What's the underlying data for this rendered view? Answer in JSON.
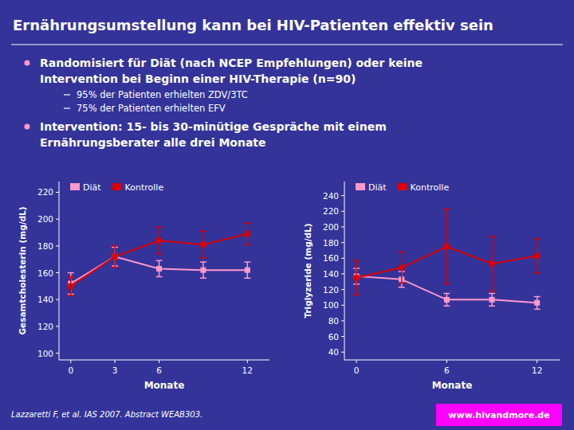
{
  "title": "Ernährungsumstellung kann bei HIV-Patienten effektiv sein",
  "bullets": [
    {
      "lines": [
        "Randomisiert für Diät (nach NCEP Empfehlungen) oder keine",
        "Intervention bei Beginn einer HIV-Therapie (n=90)"
      ],
      "sub": [
        "95% der Patienten erhielten ZDV/3TC",
        "75% der Patienten erhielten EFV"
      ]
    },
    {
      "lines": [
        "Intervention: 15- bis 30-minütige Gespräche mit einem",
        "Ernährungsberater alle drei Monate"
      ]
    }
  ],
  "footnote": "Lazzaretti F, et al. IAS 2007. Abstract WEAB303.",
  "website": "www.hivandmore.de",
  "chart_data": [
    {
      "type": "line",
      "xlabel": "Monate",
      "ylabel": "Gesamtcholesterin (mg/dL)",
      "x": [
        0,
        3,
        6,
        9,
        12
      ],
      "xlim": [
        -0.8,
        13.5
      ],
      "xticks": [
        0,
        3,
        6,
        12
      ],
      "ylim": [
        95,
        228
      ],
      "yticks": [
        100,
        120,
        140,
        160,
        180,
        200,
        220
      ],
      "grid": false,
      "legend": "upper left",
      "marker": "square",
      "series": [
        {
          "name": "Diät",
          "color": "#FF99CC",
          "values": [
            152,
            172,
            163,
            162,
            162
          ],
          "yerr": [
            8,
            7,
            6,
            6,
            6
          ]
        },
        {
          "name": "Kontrolle",
          "color": "#DD0000",
          "values": [
            150,
            172,
            184,
            181,
            189
          ],
          "yerr": [
            7,
            8,
            10,
            10,
            8
          ]
        }
      ]
    },
    {
      "type": "line",
      "xlabel": "Monate",
      "ylabel": "Triglyzeride (mg/dL)",
      "x": [
        0,
        3,
        6,
        9,
        12
      ],
      "xlim": [
        -0.8,
        13.5
      ],
      "xticks": [
        0,
        6,
        12
      ],
      "ylim": [
        30,
        258
      ],
      "yticks": [
        40,
        60,
        80,
        100,
        120,
        140,
        160,
        180,
        200,
        220,
        240
      ],
      "grid": false,
      "legend": "upper left",
      "marker": "square",
      "series": [
        {
          "name": "Diät",
          "color": "#FF99CC",
          "values": [
            137,
            133,
            107,
            107,
            103
          ],
          "yerr": [
            10,
            10,
            8,
            8,
            8
          ]
        },
        {
          "name": "Kontrolle",
          "color": "#DD0000",
          "values": [
            135,
            148,
            175,
            153,
            163
          ],
          "yerr": [
            22,
            20,
            48,
            35,
            22
          ]
        }
      ]
    }
  ]
}
